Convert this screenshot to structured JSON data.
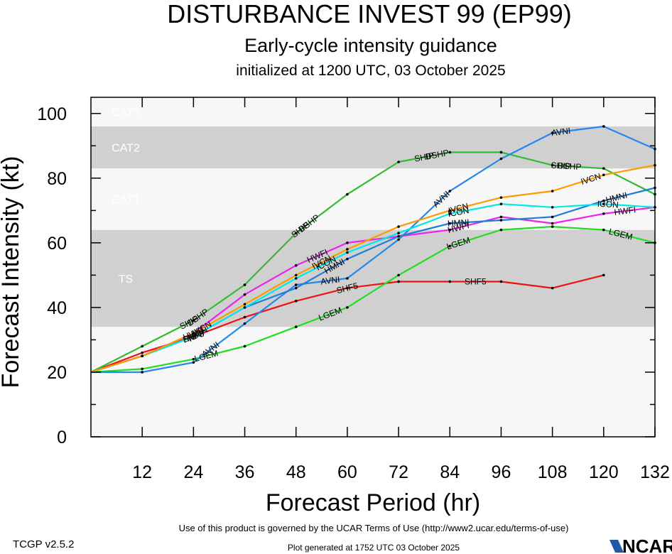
{
  "header": {
    "title": "DISTURBANCE INVEST 99 (EP99)",
    "subtitle": "Early-cycle intensity guidance",
    "init": "initialized at 1200 UTC, 03 October 2025"
  },
  "footer": {
    "version": "TCGP v2.5.2",
    "terms": "Use of this product is governed by the UCAR Terms of Use (http://www2.ucar.edu/terms-of-use)",
    "generated": "Plot generated at 1752 UTC   03 October 2025",
    "logo": "NCAR"
  },
  "chart_data": {
    "type": "line",
    "title": "DISTURBANCE INVEST 99 (EP99)",
    "xlabel": "Forecast Period (hr)",
    "ylabel": "Forecast Intensity (kt)",
    "xlim": [
      0,
      132
    ],
    "ylim": [
      0,
      105
    ],
    "x_ticks": [
      12,
      24,
      36,
      48,
      60,
      72,
      84,
      96,
      108,
      120,
      132
    ],
    "y_ticks": [
      0,
      20,
      40,
      60,
      80,
      100
    ],
    "bands": [
      {
        "name": "TS",
        "from": 34,
        "to": 64,
        "color": "#d0d0d0"
      },
      {
        "name": "CAT1",
        "from": 64,
        "to": 83,
        "color": "#f7f7f7"
      },
      {
        "name": "CAT2",
        "from": 83,
        "to": 96,
        "color": "#d0d0d0"
      },
      {
        "name": "CAT3",
        "from": 96,
        "to": 105,
        "color": "#f7f7f7"
      }
    ],
    "series": [
      {
        "name": "SHF5",
        "color": "#ee1111",
        "x": [
          0,
          12,
          24,
          36,
          48,
          60,
          72,
          84,
          96,
          108,
          120
        ],
        "values": [
          20,
          26,
          31,
          37,
          42,
          46,
          48,
          48,
          48,
          46,
          50
        ],
        "labels_at": [
          24,
          60,
          90
        ]
      },
      {
        "name": "LGEM",
        "color": "#22dd22",
        "x": [
          0,
          12,
          24,
          36,
          48,
          60,
          72,
          84,
          96,
          108,
          120,
          132
        ],
        "values": [
          20,
          21,
          24,
          28,
          34,
          40,
          50,
          59,
          64,
          65,
          64,
          60
        ],
        "labels_at": [
          27,
          56,
          86,
          124
        ]
      },
      {
        "name": "DSHP",
        "color": "#33bb33",
        "x": [
          0,
          12,
          24,
          36,
          48,
          60,
          72,
          84,
          96,
          108,
          120,
          132
        ],
        "values": [
          20,
          28,
          36,
          47,
          63,
          75,
          85,
          88,
          88,
          84,
          83,
          75
        ],
        "labels_at": [
          25,
          51,
          81,
          112
        ]
      },
      {
        "name": "SHIP",
        "color": "#33bb33",
        "x": [],
        "values": [],
        "labels_at": [
          23,
          49,
          78,
          110
        ]
      },
      {
        "name": "AVNI",
        "color": "#2288ee",
        "x": [
          0,
          12,
          24,
          36,
          48,
          60,
          72,
          84,
          96,
          108,
          120,
          132
        ],
        "values": [
          20,
          20,
          23,
          35,
          47,
          49,
          61,
          76,
          86,
          94,
          96,
          89
        ],
        "labels_at": [
          28,
          56,
          82,
          110
        ]
      },
      {
        "name": "HWFI",
        "color": "#ee22ee",
        "x": [
          0,
          12,
          24,
          36,
          48,
          60,
          72,
          84,
          96,
          108,
          120,
          132
        ],
        "values": [
          20,
          25,
          32,
          44,
          53,
          60,
          62,
          64,
          68,
          66,
          69,
          71
        ],
        "labels_at": [
          24,
          53,
          86,
          125
        ]
      },
      {
        "name": "HMNI",
        "color": "#1e7fd8",
        "x": [
          0,
          12,
          24,
          36,
          48,
          60,
          72,
          84,
          96,
          108,
          120,
          132
        ],
        "values": [
          20,
          25,
          31,
          40,
          46,
          55,
          62,
          66,
          67,
          68,
          73,
          77
        ],
        "labels_at": [
          24,
          57,
          86,
          123
        ]
      },
      {
        "name": "ICON",
        "color": "#00e8e8",
        "x": [
          0,
          12,
          24,
          36,
          48,
          60,
          72,
          84,
          96,
          108,
          120,
          132
        ],
        "values": [
          20,
          25,
          31,
          40,
          49,
          57,
          63,
          69,
          72,
          71,
          72,
          71
        ],
        "labels_at": [
          25,
          55,
          86,
          121
        ]
      },
      {
        "name": "IVCN",
        "color": "#ff9900",
        "x": [
          0,
          12,
          24,
          36,
          48,
          60,
          72,
          84,
          96,
          108,
          120,
          132
        ],
        "values": [
          20,
          25,
          32,
          41,
          50,
          58,
          65,
          70,
          74,
          76,
          81,
          84
        ],
        "labels_at": [
          26,
          54,
          86,
          117
        ]
      }
    ]
  }
}
